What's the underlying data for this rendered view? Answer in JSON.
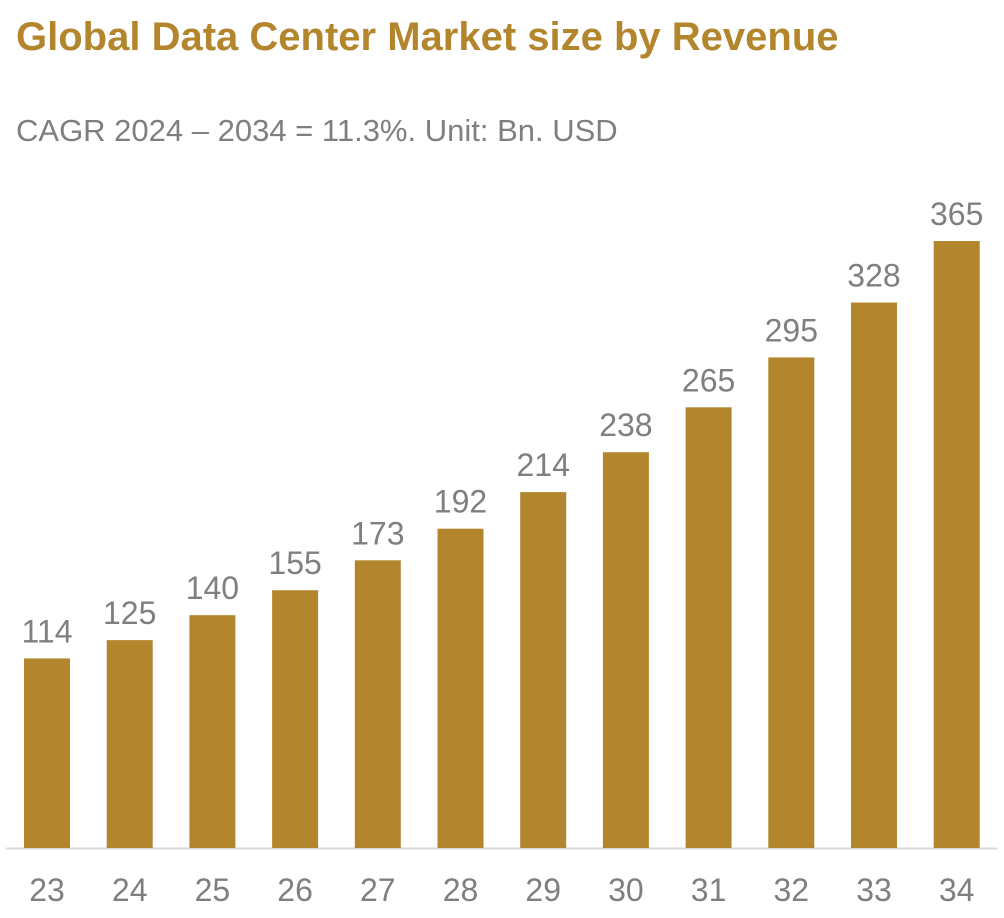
{
  "chart_data": {
    "type": "bar",
    "title": "Global Data Center Market size by Revenue",
    "subtitle": "CAGR 2024 – 2034 = 11.3%. Unit: Bn. USD",
    "categories": [
      "23",
      "24",
      "25",
      "26",
      "27",
      "28",
      "29",
      "30",
      "31",
      "32",
      "33",
      "34"
    ],
    "values": [
      114,
      125,
      140,
      155,
      173,
      192,
      214,
      238,
      265,
      295,
      328,
      365
    ],
    "xlabel": "",
    "ylabel": "",
    "ylim": [
      0,
      380
    ],
    "grid": false,
    "bar_color": "#B3862E",
    "label_color": "#7F7F7F"
  }
}
